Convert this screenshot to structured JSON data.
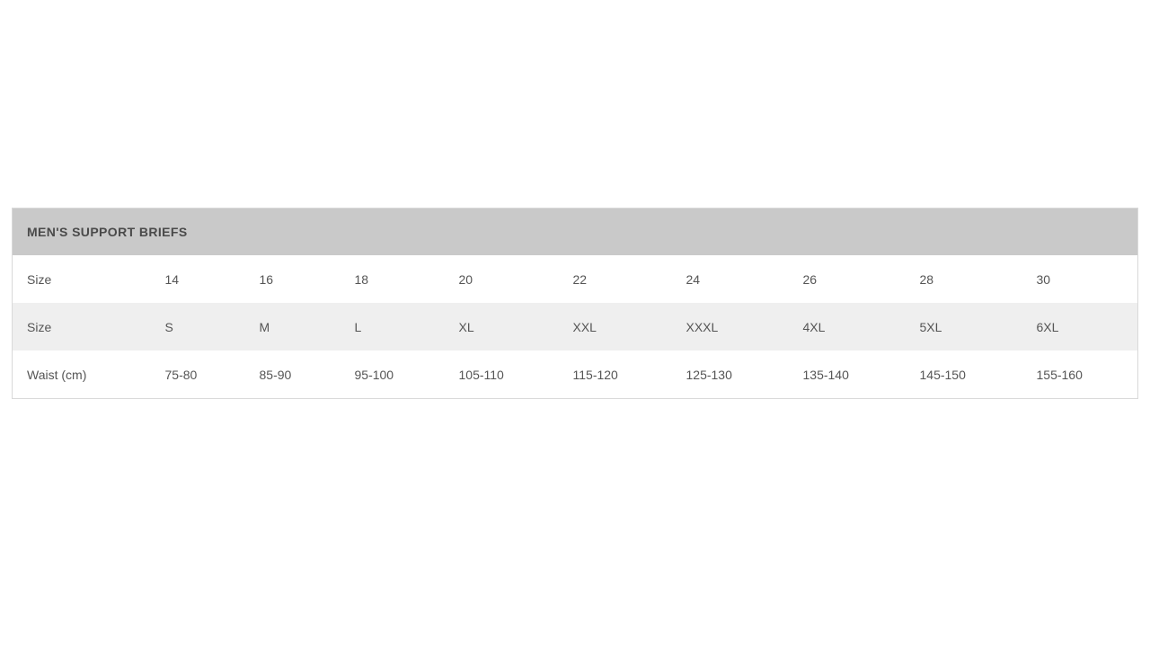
{
  "page": {
    "background": "#ffffff"
  },
  "size_chart": {
    "title": "MEN'S SUPPORT BRIEFS",
    "colors": {
      "header_bg": "#c9c9c9",
      "alt_row_bg": "#efefef",
      "row_bg": "#ffffff",
      "border": "#d9d9d9",
      "title_text": "#4a4a4a",
      "body_text": "#555555"
    },
    "rows": [
      {
        "label": "Size",
        "values": [
          "14",
          "16",
          "18",
          "20",
          "22",
          "24",
          "26",
          "28",
          "30"
        ]
      },
      {
        "label": "Size",
        "values": [
          "S",
          "M",
          "L",
          "XL",
          "XXL",
          "XXXL",
          "4XL",
          "5XL",
          "6XL"
        ]
      },
      {
        "label": "Waist (cm)",
        "values": [
          "75-80",
          "85-90",
          "95-100",
          "105-110",
          "115-120",
          "125-130",
          "135-140",
          "145-150",
          "155-160"
        ]
      }
    ]
  }
}
